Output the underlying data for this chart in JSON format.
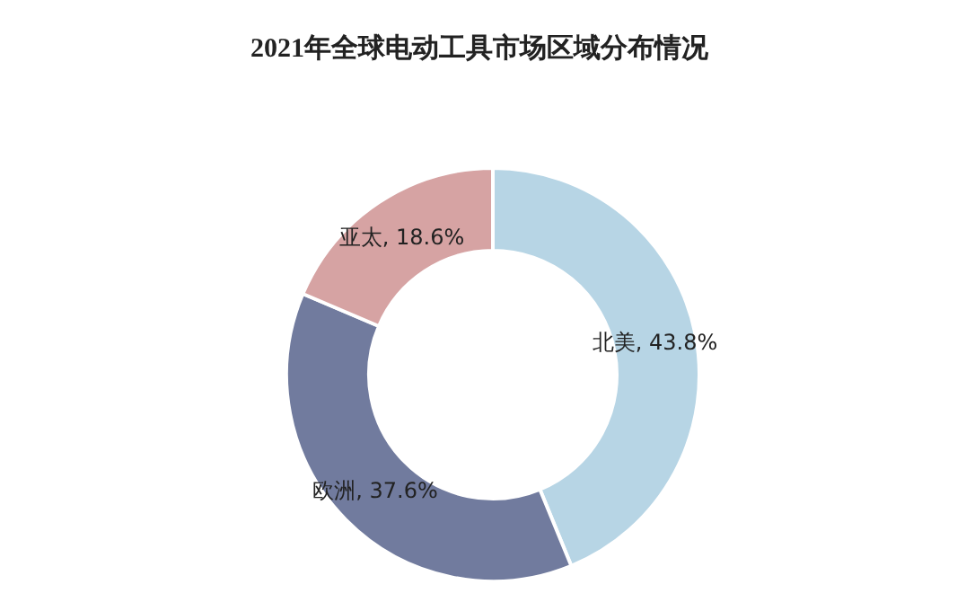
{
  "chart_data": {
    "type": "donut",
    "title": "2021年全球电动工具市场区域分布情况",
    "categories": [
      "北美",
      "欧洲",
      "亚太"
    ],
    "values": [
      43.8,
      37.6,
      18.6
    ],
    "colors": [
      "#b7d5e5",
      "#717b9e",
      "#d6a3a3"
    ],
    "value_labels": [
      "43.8%",
      "37.6%",
      "18.6%"
    ]
  }
}
